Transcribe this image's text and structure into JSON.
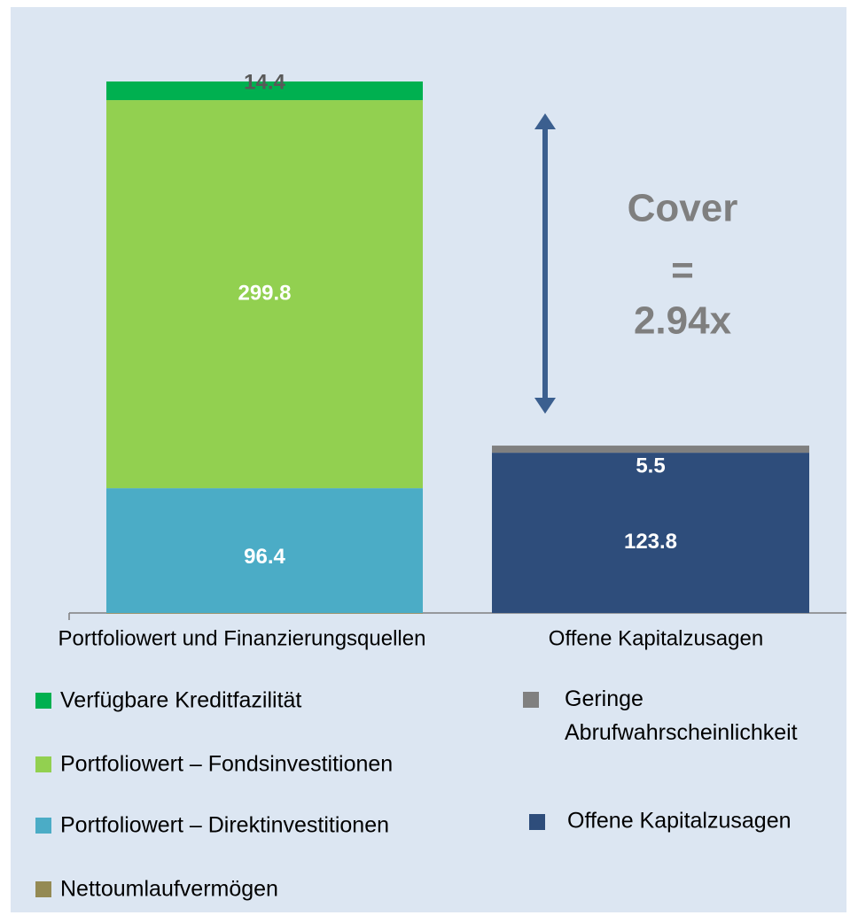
{
  "chart_data": {
    "type": "stacked_bar",
    "categories": [
      "Portfoliowert und Finanzierungsquellen",
      "Offene Kapitalzusagen"
    ],
    "series": [
      {
        "name": "Verfügbare Kreditfazilität",
        "color": "#00b050",
        "values": [
          14.4,
          null
        ]
      },
      {
        "name": "Portfoliowert – Fondsinvestitionen",
        "color": "#92d050",
        "values": [
          299.8,
          null
        ]
      },
      {
        "name": "Portfoliowert – Direktinvestitionen",
        "color": "#4bacc6",
        "values": [
          96.4,
          null
        ]
      },
      {
        "name": "Nettoumlaufvermögen",
        "color": "#948a54",
        "values": [
          -0.5,
          null
        ]
      },
      {
        "name": "Geringe Abrufwahrscheinlichkeit",
        "color": "#808080",
        "values": [
          null,
          5.5
        ]
      },
      {
        "name": "Offene Kapitalzusagen",
        "color": "#2e4d7b",
        "values": [
          null,
          123.8
        ]
      }
    ],
    "ylim": [
      0,
      410.6
    ],
    "annotations": [
      "Cover",
      "=",
      "2.94x"
    ]
  }
}
